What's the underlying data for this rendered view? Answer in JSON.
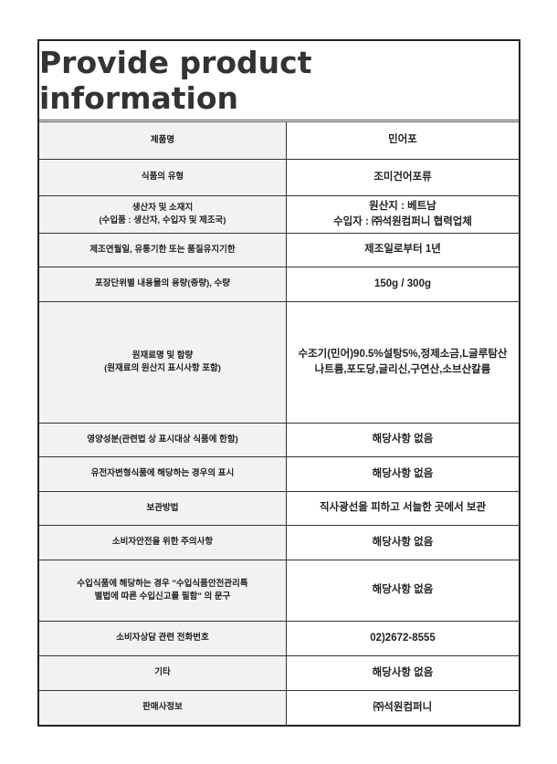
{
  "title": "Provide product information",
  "rows": [
    {
      "label": "제품명",
      "value": "민어포"
    },
    {
      "label": "식품의 유형",
      "value": "조미건어포류"
    },
    {
      "label": "생산자 및 소재지\n(수입품 : 생산자, 수입자 및 제조국)",
      "value": "원산지 : 베트남\n수입자 : ㈜석원컴퍼니 협력업체"
    },
    {
      "label": "제조연월일, 유통기한 또는 품질유지기한",
      "value": "제조일로부터 1년"
    },
    {
      "label": "포장단위별 내용물의 용량(중량), 수량",
      "value": "150g / 300g"
    },
    {
      "label": "원재료명 및 함량\n(원재료의 원산지 표시사항 포함)",
      "value": "수조기(민어)90.5%설탕5%,정제소금,L글루탐산나트륨,포도당,글리신,구연산,소브산칼륨"
    },
    {
      "label": "영양성분(관련법 상 표시대상 식품에 한함)",
      "value": "해당사항 없음"
    },
    {
      "label": "유전자변형식품에 해당하는 경우의 표시",
      "value": "해당사항 없음"
    },
    {
      "label": "보관방법",
      "value": "직사광선을 피하고 서늘한 곳에서 보관"
    },
    {
      "label": "소비자안전을 위한 주의사항",
      "value": "해당사항 없음"
    },
    {
      "label": "수입식품에 해당하는 경우 \"수입식품안전관리특\n별법에 따른 수입신고를 필함\" 의 문구",
      "value": "해당사항 없음"
    },
    {
      "label": "소비자상담 관련 전화번호",
      "value": "02)2672-8555"
    },
    {
      "label": "기타",
      "value": "해당사항 없음"
    },
    {
      "label": "판매사정보",
      "value": "㈜석원컴퍼니"
    }
  ]
}
